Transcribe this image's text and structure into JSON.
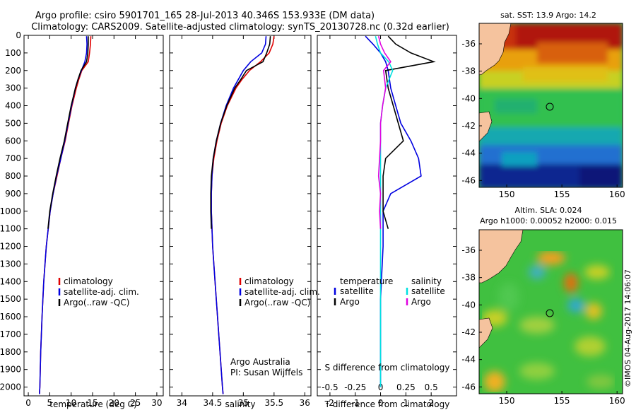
{
  "header": {
    "line1": "Argo profile: csiro 5901701_165 28-Jul-2013 40.346S 153.933E (DM data)",
    "line2": "Climatology: CARS2009. Satellite-adjusted climatology: synTS_20130728.nc (0.32d earlier)"
  },
  "colors": {
    "climatology": "#e00000",
    "satellite": "#0000e0",
    "argo": "#000000",
    "sal_satellite": "#00e0e0",
    "sal_argo": "#e000e0",
    "land": "#f5c39e"
  },
  "chart_data": [
    {
      "id": "temperature",
      "type": "line",
      "title": "",
      "xlabel": "temperature (deg C)",
      "ylabel": "",
      "xlim": [
        -1,
        31.5
      ],
      "ylim": [
        2050,
        0
      ],
      "xticks": [
        "0",
        "5",
        "10",
        "15",
        "20",
        "25",
        "30"
      ],
      "yticks": [
        "0",
        "100",
        "200",
        "300",
        "400",
        "500",
        "600",
        "700",
        "800",
        "900",
        "1000",
        "1100",
        "1200",
        "1300",
        "1400",
        "1500",
        "1600",
        "1700",
        "1800",
        "1900",
        "2000"
      ],
      "legend": [
        "climatology",
        "satellite-adj. clim.",
        "Argo(..raw -QC)"
      ],
      "series": [
        {
          "name": "climatology",
          "color": "#e00000",
          "y": [
            5,
            50,
            100,
            150,
            200,
            250,
            300,
            400,
            500,
            600,
            700,
            800,
            900,
            1000,
            1200,
            1400,
            1600,
            1800,
            2000,
            2040
          ],
          "x": [
            14.6,
            14.5,
            14.3,
            14.0,
            12.5,
            11.8,
            11.2,
            10.2,
            9.4,
            8.6,
            7.6,
            6.7,
            5.8,
            5.1,
            4.2,
            3.6,
            3.2,
            2.9,
            2.7,
            2.6
          ]
        },
        {
          "name": "satellite-adj. clim.",
          "color": "#0000e0",
          "y": [
            5,
            50,
            100,
            150,
            200,
            250,
            300,
            400,
            500,
            600,
            700,
            800,
            900,
            1000,
            1200,
            1400,
            1600,
            1800,
            2000,
            2040
          ],
          "x": [
            13.6,
            13.7,
            13.6,
            13.2,
            12.4,
            11.6,
            11.0,
            10.1,
            9.3,
            8.5,
            7.6,
            6.6,
            5.8,
            5.1,
            4.2,
            3.6,
            3.2,
            2.9,
            2.7,
            2.6
          ]
        },
        {
          "name": "Argo(..raw -QC)",
          "color": "#000000",
          "y": [
            5,
            50,
            100,
            150,
            200,
            250,
            300,
            400,
            500,
            600,
            700,
            800,
            900,
            1000,
            1100
          ],
          "x": [
            14.0,
            14.0,
            13.9,
            13.6,
            12.3,
            11.6,
            11.0,
            10.0,
            9.2,
            8.4,
            7.4,
            6.5,
            5.7,
            5.0,
            4.6
          ]
        }
      ]
    },
    {
      "id": "salinity",
      "type": "line",
      "title": "",
      "xlabel": "salinity",
      "ylabel": "",
      "xlim": [
        33.8,
        36.1
      ],
      "ylim": [
        2050,
        0
      ],
      "xticks": [
        "34",
        "34.5",
        "35",
        "35.5",
        "36"
      ],
      "legend": [
        "climatology",
        "satellite-adj. clim.",
        "Argo(..raw -QC)"
      ],
      "annotation": [
        "Argo Australia",
        "PI: Susan Wijffels"
      ],
      "series": [
        {
          "name": "climatology",
          "color": "#e00000",
          "y": [
            5,
            50,
            100,
            150,
            200,
            250,
            300,
            400,
            500,
            600,
            700,
            800,
            900,
            1000,
            1200,
            1400,
            1600,
            1800,
            2000,
            2040
          ],
          "x": [
            35.5,
            35.48,
            35.42,
            35.28,
            35.1,
            34.98,
            34.88,
            34.74,
            34.64,
            34.57,
            34.52,
            34.49,
            34.48,
            34.48,
            34.5,
            34.54,
            34.58,
            34.62,
            34.66,
            34.67
          ]
        },
        {
          "name": "satellite-adj. clim.",
          "color": "#0000e0",
          "y": [
            5,
            50,
            100,
            150,
            200,
            250,
            300,
            400,
            500,
            600,
            700,
            800,
            900,
            1000,
            1200,
            1400,
            1600,
            1800,
            2000,
            2040
          ],
          "x": [
            35.37,
            35.36,
            35.3,
            35.12,
            35.0,
            34.92,
            34.84,
            34.72,
            34.63,
            34.56,
            34.51,
            34.49,
            34.48,
            34.48,
            34.5,
            34.54,
            34.58,
            34.62,
            34.66,
            34.67
          ]
        },
        {
          "name": "Argo(..raw -QC)",
          "color": "#000000",
          "y": [
            5,
            50,
            100,
            150,
            200,
            250,
            300,
            400,
            500,
            600,
            700,
            800,
            900,
            1000,
            1100
          ],
          "x": [
            35.44,
            35.43,
            35.38,
            35.32,
            35.05,
            34.96,
            34.86,
            34.73,
            34.63,
            34.56,
            34.51,
            34.48,
            34.47,
            34.47,
            34.48
          ]
        }
      ]
    },
    {
      "id": "difference",
      "type": "line",
      "title": "",
      "xlabel": "T difference from climatology",
      "xlabel_top": "S difference from climatology",
      "xlim": [
        -2.5,
        3
      ],
      "ylim": [
        2050,
        0
      ],
      "xticks": [
        "-2",
        "-1",
        "0",
        "1",
        "2"
      ],
      "xticks_top": [
        "-0.5",
        "-0.25",
        "0",
        "0.25",
        "0.5"
      ],
      "legend_left": {
        "title": "temperature",
        "items": [
          "satellite",
          "Argo"
        ]
      },
      "legend_right": {
        "title": "salinity",
        "items": [
          "satellite",
          "Argo"
        ]
      },
      "series": [
        {
          "name": "temperature satellite",
          "color": "#0000e0",
          "y": [
            5,
            50,
            100,
            150,
            200,
            300,
            400,
            500,
            600,
            700,
            800,
            900,
            1000,
            1200,
            1500,
            2000
          ],
          "x": [
            -0.6,
            -0.3,
            0.0,
            0.2,
            0.3,
            0.4,
            0.6,
            0.8,
            1.2,
            1.5,
            1.6,
            0.4,
            0.1,
            0.1,
            0.0,
            0.0
          ]
        },
        {
          "name": "temperature Argo",
          "color": "#000000",
          "y": [
            5,
            50,
            100,
            150,
            200,
            300,
            400,
            500,
            600,
            700,
            800,
            900,
            1000,
            1100
          ],
          "x": [
            0.3,
            0.6,
            1.2,
            2.1,
            0.2,
            0.3,
            0.5,
            0.7,
            0.9,
            0.2,
            0.1,
            0.1,
            0.1,
            0.3
          ]
        },
        {
          "name": "salinity satellite",
          "color": "#00e0e0",
          "y": [
            5,
            50,
            100,
            150,
            200,
            300,
            400,
            500,
            600,
            700,
            800,
            1000,
            1500,
            2000
          ],
          "x": [
            -0.05,
            -0.03,
            0.0,
            0.08,
            0.12,
            0.05,
            0.02,
            0.0,
            0.0,
            0.0,
            0.0,
            0.0,
            0.0,
            0.0
          ]
        },
        {
          "name": "salinity Argo",
          "color": "#e000e0",
          "y": [
            5,
            50,
            100,
            150,
            200,
            300,
            400,
            500,
            600,
            700,
            800,
            900,
            1000,
            1100
          ],
          "x": [
            -0.02,
            0.0,
            0.04,
            0.1,
            0.03,
            0.05,
            0.02,
            0.0,
            0.0,
            -0.01,
            -0.02,
            0.0,
            -0.01,
            0.0
          ]
        }
      ]
    },
    {
      "id": "sst-map",
      "type": "heatmap",
      "title": "sat. SST: 13.9 Argo: 14.2",
      "xlim": [
        147.5,
        160.5
      ],
      "ylim": [
        -46.5,
        -34.5
      ],
      "xticks": [
        "150",
        "155",
        "160"
      ],
      "yticks": [
        "-36",
        "-38",
        "-40",
        "-42",
        "-44",
        "-46"
      ],
      "argo_position": {
        "lon": 153.93,
        "lat": -40.35
      }
    },
    {
      "id": "sla-map",
      "type": "heatmap",
      "title": "Altim. SLA: 0.024",
      "subtitle": "Argo h1000: 0.00052 h2000: 0.015",
      "xlim": [
        147.5,
        160.5
      ],
      "ylim": [
        -46.5,
        -34.5
      ],
      "xticks": [
        "150",
        "155",
        "160"
      ],
      "yticks": [
        "-36",
        "-38",
        "-40",
        "-42",
        "-44",
        "-46"
      ],
      "argo_position": {
        "lon": 153.93,
        "lat": -40.35
      }
    }
  ],
  "footer_stamp": "©IMOS 04-Aug-2017 14:06:07"
}
